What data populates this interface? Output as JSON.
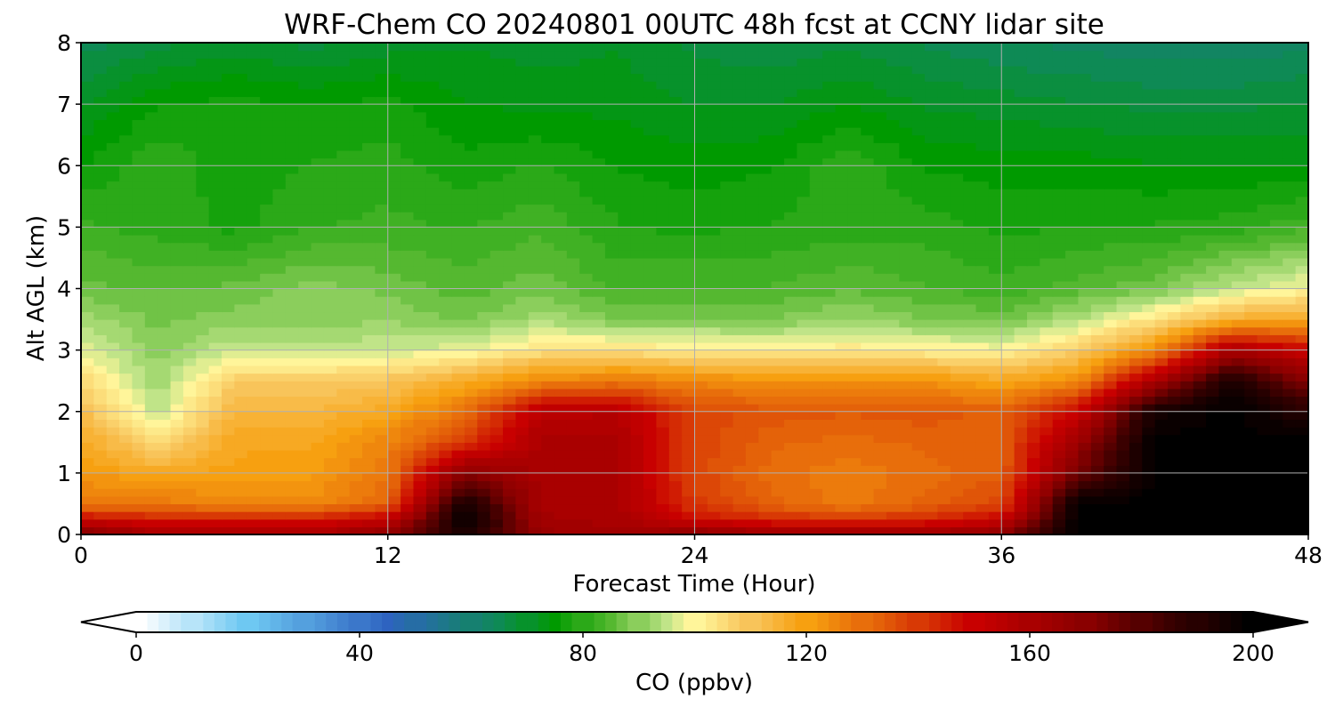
{
  "chart_data": {
    "type": "heatmap",
    "title": "WRF-Chem CO  20240801 00UTC 48h fcst at CCNY lidar site",
    "xlabel": "Forecast Time (Hour)",
    "ylabel": "Alt AGL (km)",
    "xlim": [
      0,
      48
    ],
    "ylim": [
      0,
      8
    ],
    "xticks": [
      "0",
      "12",
      "24",
      "36",
      "48"
    ],
    "yticks": [
      "0",
      "1",
      "2",
      "3",
      "4",
      "5",
      "6",
      "7",
      "8"
    ],
    "grid": true,
    "colorbar": {
      "label": "CO  (ppbv)",
      "orientation": "horizontal",
      "range": [
        0,
        200
      ],
      "extend": "both",
      "ticks": [
        "0",
        "40",
        "80",
        "120",
        "160",
        "200"
      ],
      "stops": [
        {
          "value": 0,
          "color": "#ffffff"
        },
        {
          "value": 20,
          "color": "#6ec8f2"
        },
        {
          "value": 45,
          "color": "#2e63c0"
        },
        {
          "value": 65,
          "color": "#0e8a55"
        },
        {
          "value": 75,
          "color": "#009a00"
        },
        {
          "value": 85,
          "color": "#55b830"
        },
        {
          "value": 95,
          "color": "#c0e488"
        },
        {
          "value": 100,
          "color": "#fff59a"
        },
        {
          "value": 110,
          "color": "#f8c45a"
        },
        {
          "value": 120,
          "color": "#f7a010"
        },
        {
          "value": 135,
          "color": "#e05508"
        },
        {
          "value": 150,
          "color": "#c80000"
        },
        {
          "value": 170,
          "color": "#8a0000"
        },
        {
          "value": 185,
          "color": "#3a0000"
        },
        {
          "value": 200,
          "color": "#000000"
        }
      ]
    },
    "times": [
      0,
      3,
      6,
      9,
      12,
      15,
      18,
      21,
      24,
      27,
      30,
      33,
      36,
      39,
      42,
      45,
      48
    ],
    "heights": [
      0,
      0.25,
      0.5,
      1,
      1.5,
      2,
      2.5,
      3,
      3.5,
      4,
      5,
      6,
      7,
      8
    ],
    "values": [
      [
        175,
        160,
        160,
        160,
        170,
        195,
        165,
        162,
        170,
        165,
        165,
        165,
        170,
        200,
        200,
        200,
        200
      ],
      [
        150,
        145,
        145,
        145,
        152,
        200,
        162,
        160,
        148,
        143,
        140,
        143,
        150,
        200,
        200,
        200,
        200
      ],
      [
        128,
        128,
        125,
        125,
        132,
        195,
        160,
        160,
        140,
        132,
        127,
        132,
        138,
        200,
        200,
        200,
        200
      ],
      [
        122,
        118,
        120,
        120,
        128,
        170,
        160,
        160,
        138,
        130,
        127,
        130,
        133,
        175,
        200,
        200,
        200
      ],
      [
        118,
        105,
        118,
        118,
        126,
        140,
        160,
        160,
        138,
        132,
        130,
        132,
        133,
        165,
        200,
        200,
        200
      ],
      [
        112,
        95,
        114,
        114,
        118,
        130,
        155,
        156,
        138,
        135,
        134,
        135,
        133,
        150,
        195,
        200,
        190
      ],
      [
        106,
        92,
        108,
        108,
        110,
        117,
        125,
        128,
        125,
        123,
        123,
        123,
        118,
        125,
        160,
        195,
        170
      ],
      [
        98,
        90,
        96,
        95,
        96,
        98,
        104,
        104,
        102,
        101,
        103,
        101,
        100,
        108,
        125,
        160,
        150
      ],
      [
        93,
        88,
        90,
        90,
        91,
        88,
        93,
        89,
        89,
        89,
        92,
        89,
        88,
        94,
        104,
        116,
        118
      ],
      [
        87,
        86,
        87,
        90,
        88,
        85,
        88,
        83,
        84,
        84,
        86,
        84,
        82,
        85,
        88,
        95,
        100
      ],
      [
        82,
        80,
        78,
        81,
        82,
        81,
        83,
        79,
        78,
        79,
        80,
        80,
        78,
        79,
        79,
        80,
        83
      ],
      [
        76,
        81,
        77,
        79,
        80,
        77,
        79,
        76,
        75,
        76,
        81,
        76,
        75,
        75,
        74,
        74,
        74
      ],
      [
        71,
        76,
        77,
        76,
        77,
        74,
        73,
        73,
        71,
        71,
        74,
        71,
        70,
        69,
        68,
        68,
        69
      ],
      [
        65,
        68,
        70,
        68,
        70,
        71,
        70,
        71,
        68,
        67,
        68,
        66,
        64,
        63,
        62,
        62,
        63
      ]
    ]
  }
}
